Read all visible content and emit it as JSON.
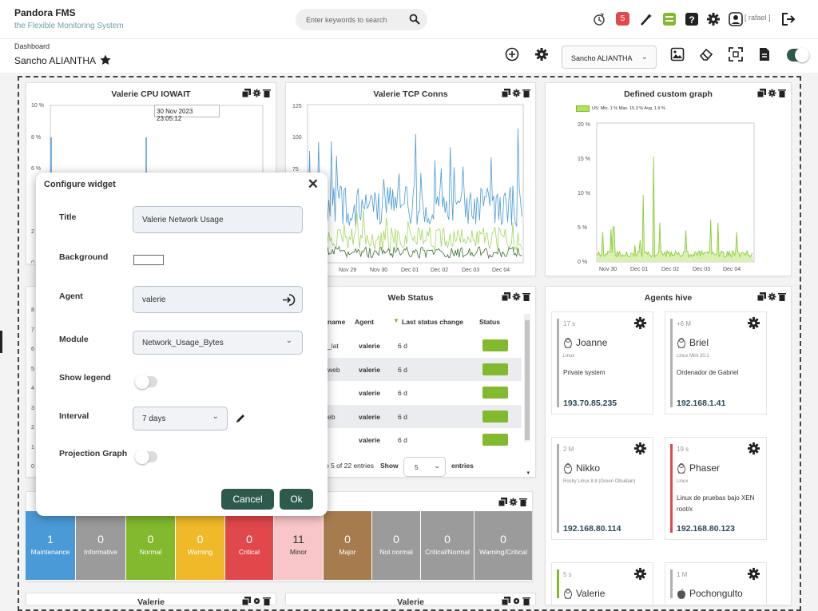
{
  "app": {
    "name": "Pandora FMS",
    "tagline": "the Flexible Monitoring System"
  },
  "search": {
    "placeholder": "Enter keywords to search"
  },
  "topbar": {
    "alerts_count": "5",
    "user": "[ rafael ]"
  },
  "breadcrumb": "Dashboard",
  "dashboard": {
    "name": "Sancho ALIANTHA",
    "selector_value": "Sancho ALIANTHA"
  },
  "widgets": {
    "cpu": {
      "title": "Valerie CPU IOWAIT",
      "tooltip": "30 Nov 2023 23:05:12",
      "yticks": [
        "10 %",
        "8 %",
        "6 %",
        "2",
        "0"
      ]
    },
    "tcp": {
      "title": "Valerie TCP Conns",
      "yticks": [
        "125",
        "100",
        "75"
      ],
      "xticks": [
        "Nov 29",
        "Nov 30",
        "Dec 01",
        "Dec 02",
        "Dec 03",
        "Dec 04"
      ]
    },
    "custom": {
      "title": "Defined custom graph",
      "legend": "US: Min. 1 % Max. 15.3 % Avg. 1.9 %",
      "yticks": [
        "20 %",
        "15 %",
        "10 %",
        "5 %",
        "0 %"
      ],
      "xticks": [
        "Nov 30",
        "Dec 01",
        "Dec 02",
        "Dec 03",
        "Dec 04"
      ]
    },
    "left_mid": {
      "yticks": [
        "8",
        "7",
        "6",
        "5",
        "4",
        "3",
        "2",
        "1",
        "0"
      ]
    },
    "web": {
      "title": "Web Status",
      "headers": [
        "name",
        "Agent",
        "Last status change",
        "Status"
      ],
      "rows": [
        {
          "name": "_lat",
          "agent": "valerie",
          "change": "6 d"
        },
        {
          "name": "web",
          "agent": "valerie",
          "change": "6 d"
        },
        {
          "name": "",
          "agent": "valerie",
          "change": "6 d"
        },
        {
          "name": "eb",
          "agent": "valerie",
          "change": "6 d"
        },
        {
          "name": "",
          "agent": "valerie",
          "change": "6 d"
        }
      ],
      "footer_info": "o 5 of 22 entries",
      "show_label": "Show",
      "show_value": "5",
      "entries_label": "entries"
    },
    "hive": {
      "title": "Agents hive"
    },
    "bottom_left": {
      "title": "Valerie"
    },
    "bottom_mid": {
      "title": "Valerie"
    }
  },
  "groups": [
    {
      "count": "1",
      "label": "Maintenance",
      "color": "#4a9ad7"
    },
    {
      "count": "0",
      "label": "Informative",
      "color": "#9b9b9b"
    },
    {
      "count": "0",
      "label": "Normal",
      "color": "#82b92e"
    },
    {
      "count": "0",
      "label": "Warning",
      "color": "#f0b92a"
    },
    {
      "count": "0",
      "label": "Critical",
      "color": "#e0484b"
    },
    {
      "count": "11",
      "label": "Minor",
      "color": "#f8c6c9"
    },
    {
      "count": "0",
      "label": "Major",
      "color": "#a67c4e"
    },
    {
      "count": "0",
      "label": "Not normal",
      "color": "#9b9b9b"
    },
    {
      "count": "0",
      "label": "Critical/Normal",
      "color": "#9b9b9b"
    },
    {
      "count": "0",
      "label": "Warning/Critical",
      "color": "#9b9b9b"
    }
  ],
  "agents": [
    {
      "age": "17 s",
      "name": "Joanne",
      "os": "Linux",
      "desc": "Private system",
      "ip": "193.70.85.235",
      "color": "#b0b0b0"
    },
    {
      "age": "+6 M",
      "name": "Briel",
      "os": "Linux Mint 20.1",
      "desc": "Ordenador de Gabriel",
      "ip": "192.168.1.41",
      "color": "#b0b0b0"
    },
    {
      "age": "2 M",
      "name": "Nikko",
      "os": "Rocky Linux 8.8 (Green Obsidian)",
      "desc": "",
      "ip": "192.168.80.114",
      "color": "#b0b0b0"
    },
    {
      "age": "19 s",
      "name": "Phaser",
      "os": "Linux",
      "desc": "Linux de pruebas bajo XEN root/x",
      "ip": "192.168.80.123",
      "color": "#e0484b"
    },
    {
      "age": "5 s",
      "name": "Valerie",
      "os": "",
      "desc": "",
      "ip": "",
      "color": "#82b92e"
    },
    {
      "age": "1 M",
      "name": "Pochongulto",
      "os": "",
      "desc": "",
      "ip": "",
      "color": "#b0b0b0"
    }
  ],
  "modal": {
    "title": "Configure widget",
    "fields": {
      "title_label": "Title",
      "title_value": "Valerie Network Usage",
      "background_label": "Background",
      "agent_label": "Agent",
      "agent_value": "valerie",
      "module_label": "Module",
      "module_value": "Network_Usage_Bytes",
      "legend_label": "Show legend",
      "interval_label": "Interval",
      "interval_value": "7 days",
      "projection_label": "Projection Graph"
    },
    "cancel": "Cancel",
    "ok": "Ok"
  },
  "colors": {
    "accent": "#2e5a4e",
    "link": "#6f9fa6",
    "ok": "#82b92e"
  }
}
